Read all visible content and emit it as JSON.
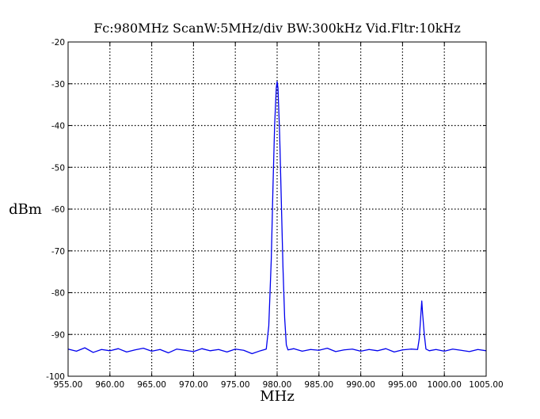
{
  "chart_data": {
    "type": "line",
    "title": "Fc:980MHz ScanW:5MHz/div BW:300kHz Vid.Fltr:10kHz",
    "xlabel": "MHz",
    "ylabel": "dBm",
    "xlim": [
      955,
      1005
    ],
    "ylim": [
      -100,
      -20
    ],
    "x_ticks": [
      955,
      960,
      965,
      970,
      975,
      980,
      985,
      990,
      995,
      1000,
      1005
    ],
    "x_tick_labels": [
      "955.00",
      "960.00",
      "965.00",
      "970.00",
      "975.00",
      "980.00",
      "985.00",
      "990.00",
      "995.00",
      "1000.00",
      "1005.00"
    ],
    "y_ticks": [
      -100,
      -90,
      -80,
      -70,
      -60,
      -50,
      -40,
      -30,
      -20
    ],
    "y_tick_labels": [
      "-100",
      "-90",
      "-80",
      "-70",
      "-60",
      "-50",
      "-40",
      "-30",
      "-20"
    ],
    "grid": true,
    "series": [
      {
        "color": "#0000ee",
        "x": [
          955,
          956,
          957,
          958,
          959,
          960,
          961,
          962,
          963,
          964,
          965,
          966,
          967,
          968,
          969,
          970,
          971,
          972,
          973,
          974,
          975,
          976,
          977,
          978,
          978.7,
          979.0,
          979.3,
          979.5,
          979.7,
          979.9,
          980.0,
          980.1,
          980.3,
          980.5,
          980.7,
          980.9,
          981.1,
          981.3,
          982,
          983,
          984,
          985,
          986,
          987,
          988,
          989,
          990,
          991,
          992,
          993,
          994,
          995,
          996,
          996.8,
          997.0,
          997.2,
          997.3,
          997.4,
          997.6,
          997.8,
          998.2,
          999,
          1000,
          1001,
          1002,
          1003,
          1004,
          1005
        ],
        "y": [
          -93.5,
          -94.0,
          -93.2,
          -94.3,
          -93.6,
          -93.9,
          -93.4,
          -94.2,
          -93.7,
          -93.3,
          -94.0,
          -93.6,
          -94.4,
          -93.5,
          -93.8,
          -94.1,
          -93.4,
          -93.9,
          -93.6,
          -94.2,
          -93.5,
          -93.8,
          -94.6,
          -93.9,
          -93.5,
          -88,
          -72,
          -55,
          -40,
          -31,
          -29.5,
          -31,
          -42,
          -58,
          -74,
          -86,
          -92.5,
          -93.7,
          -93.4,
          -94.0,
          -93.6,
          -93.8,
          -93.3,
          -94.1,
          -93.7,
          -93.5,
          -94.0,
          -93.6,
          -93.9,
          -93.4,
          -94.2,
          -93.7,
          -93.5,
          -93.6,
          -91,
          -85,
          -82,
          -85,
          -90,
          -93.5,
          -93.9,
          -93.6,
          -94.0,
          -93.5,
          -93.8,
          -94.1,
          -93.6,
          -93.9
        ]
      }
    ]
  }
}
